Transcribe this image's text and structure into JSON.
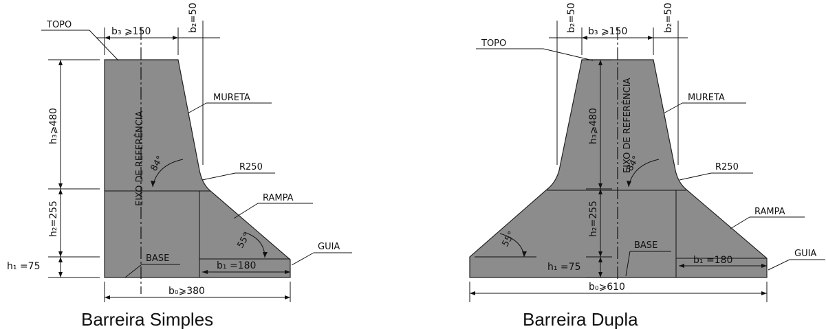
{
  "simple": {
    "caption": "Barreira Simples",
    "topo": "TOPO",
    "mureta": "MURETA",
    "r250": "R250",
    "rampa": "RAMPA",
    "guia": "GUIA",
    "base": "BASE",
    "eixo": "EIXO DE REFERÊNCIA",
    "b3": "b₃ ⩾150",
    "b2": "b₂=50",
    "b1": "b₁ =180",
    "b0": "b₀⩾380",
    "h3": "h₃⩾480",
    "h2": "h₂=255",
    "h1": "h₁ =75",
    "angle84": "84°",
    "angle55": "55°"
  },
  "dupla": {
    "caption": "Barreira Dupla",
    "topo": "TOPO",
    "mureta": "MURETA",
    "r250": "R250",
    "rampa": "RAMPA",
    "guia": "GUIA",
    "base": "BASE",
    "eixo": "EIXO DE REFERÊNCIA",
    "b2_left": "b₂=50",
    "b3": "b₃ ⩾150",
    "b2_right": "b₂=50",
    "b1": "b₁ =180",
    "b0": "b₀⩾610",
    "h3": "h₃⩾480",
    "h2": "h₂=255",
    "h1": "h₁ =75",
    "angle84": "84°",
    "angle55": "55°"
  }
}
